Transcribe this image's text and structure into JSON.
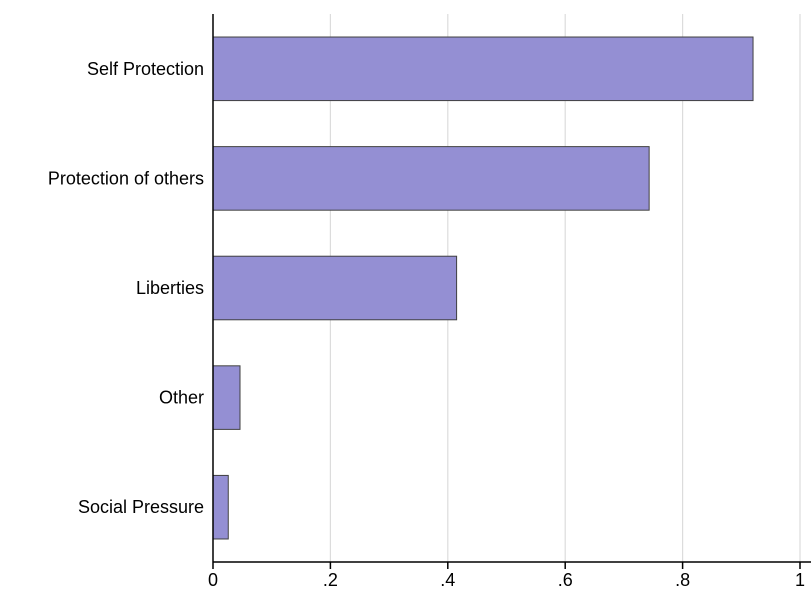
{
  "chart_data": {
    "type": "bar",
    "orientation": "horizontal",
    "categories": [
      "Self Protection",
      "Protection of others",
      "Liberties",
      "Other",
      "Social Pressure"
    ],
    "values": [
      0.92,
      0.743,
      0.415,
      0.046,
      0.026
    ],
    "xlim": [
      0,
      1
    ],
    "x_ticks": [
      0,
      0.2,
      0.4,
      0.6,
      0.8,
      1
    ],
    "x_tick_labels": [
      "0",
      ".2",
      ".4",
      ".6",
      ".8",
      "1"
    ],
    "grid": true,
    "bar_color": "#948fd3",
    "bar_edge_color": "#404040"
  }
}
